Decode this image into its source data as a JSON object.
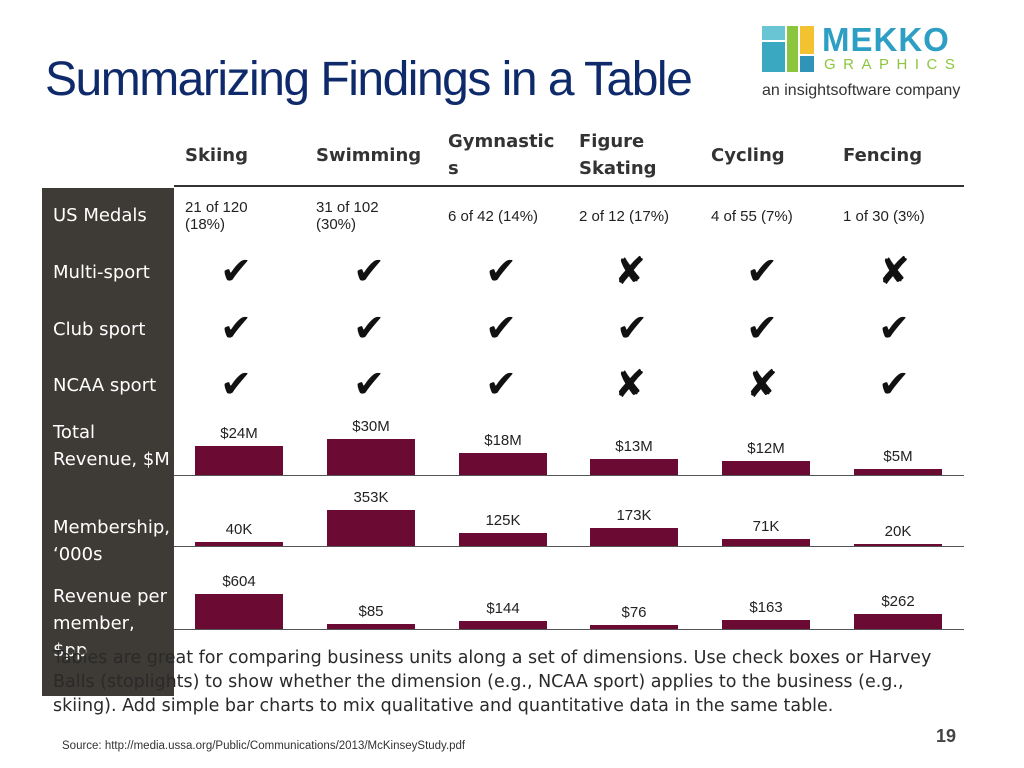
{
  "slide": {
    "title": "Summarizing Findings in a Table",
    "page_number": "19",
    "source": "Source: http://media.ussa.org/Public/Communications/2013/McKinseyStudy.pdf",
    "body_text": "Tables are great for comparing business units along a set of dimensions.  Use check boxes or Harvey Balls (stoplights) to show whether the dimension (e.g., NCAA sport) applies to the business (e.g., skiing).  Add simple bar charts to mix qualitative and quantitative data in the same table."
  },
  "logo": {
    "name": "MEKKO",
    "sub": "GRAPHICS",
    "tagline": "an insightsoftware company"
  },
  "row_labels": [
    "US Medals",
    "Multi-sport",
    "Club sport",
    "NCAA sport",
    "Total Revenue, $M",
    "Membership, ‘000s",
    "Revenue per member, $pp"
  ],
  "columns": [
    "Skiing",
    "Swimming",
    "Gymnastics",
    "Figure Skating",
    "Cycling",
    "Fencing"
  ],
  "medals": [
    "21 of 120 (18%)",
    "31 of 102 (30%)",
    "6 of 42 (14%)",
    "2 of 12 (17%)",
    "4 of 55 (7%)",
    "1 of 30 (3%)"
  ],
  "marks": {
    "multi_sport": [
      "✔",
      "✔",
      "✔",
      "✘",
      "✔",
      "✘"
    ],
    "club_sport": [
      "✔",
      "✔",
      "✔",
      "✔",
      "✔",
      "✔"
    ],
    "ncaa_sport": [
      "✔",
      "✔",
      "✔",
      "✘",
      "✘",
      "✔"
    ]
  },
  "colors": {
    "title": "#0f2a6b",
    "sidebar": "#3e3a35",
    "bar": "#6b0a32"
  },
  "chart_data": [
    {
      "type": "bar",
      "title": "Total Revenue, $M",
      "categories": [
        "Skiing",
        "Swimming",
        "Gymnastics",
        "Figure Skating",
        "Cycling",
        "Fencing"
      ],
      "values": [
        24,
        30,
        18,
        13,
        12,
        5
      ],
      "labels": [
        "$24M",
        "$30M",
        "$18M",
        "$13M",
        "$12M",
        "$5M"
      ]
    },
    {
      "type": "bar",
      "title": "Membership, ‘000s",
      "categories": [
        "Skiing",
        "Swimming",
        "Gymnastics",
        "Figure Skating",
        "Cycling",
        "Fencing"
      ],
      "values": [
        40,
        353,
        125,
        173,
        71,
        20
      ],
      "labels": [
        "40K",
        "353K",
        "125K",
        "173K",
        "71K",
        "20K"
      ]
    },
    {
      "type": "bar",
      "title": "Revenue per member, $pp",
      "categories": [
        "Skiing",
        "Swimming",
        "Gymnastics",
        "Figure Skating",
        "Cycling",
        "Fencing"
      ],
      "values": [
        604,
        85,
        144,
        76,
        163,
        262
      ],
      "labels": [
        "$604",
        "$85",
        "$144",
        "$76",
        "$163",
        "$262"
      ]
    }
  ]
}
